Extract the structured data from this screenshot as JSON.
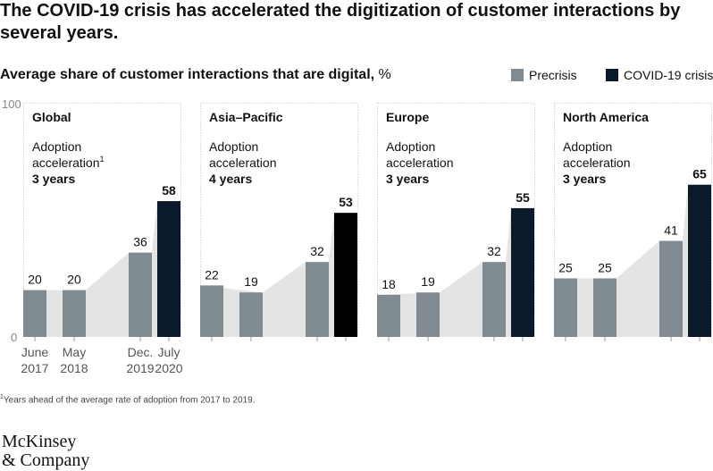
{
  "title": "The COVID-19 crisis has accelerated the digitization of customer interactions by several years.",
  "subtitle_bold": "Average share of customer interactions that are digital,",
  "subtitle_unit": " %",
  "legend": [
    {
      "label": "Precrisis",
      "color": "#7f8a91"
    },
    {
      "label": "COVID-19 crisis",
      "color": "#0b1a2b"
    }
  ],
  "colors": {
    "precrisis": "#7f8a91",
    "crisis_dark": "#0b1a2b",
    "crisis_black": "#000000",
    "area": "#e4e4e4",
    "border": "#d4d4d4"
  },
  "chart_data": {
    "type": "bar",
    "title": "Average share of customer interactions that are digital, %",
    "ylim": [
      0,
      100
    ],
    "yticks": [
      "100",
      "0"
    ],
    "categories": [
      "June 2017",
      "May 2018",
      "Dec. 2019",
      "July 2020"
    ],
    "category_labels": [
      {
        "line1": "June",
        "line2": "2017"
      },
      {
        "line1": "May",
        "line2": "2018"
      },
      {
        "line1": "Dec.",
        "line2": "2019"
      },
      {
        "line1": "July",
        "line2": "2020"
      }
    ],
    "panels": [
      {
        "region": "Global",
        "adoption_label": "Adoption",
        "acceleration_label": "acceleration",
        "footnote_mark": "1",
        "acceleration": "3 years",
        "values": [
          20,
          20,
          36,
          58
        ],
        "crisis_color": "#0b1a2b"
      },
      {
        "region": "Asia–Pacific",
        "adoption_label": "Adoption",
        "acceleration_label": "acceleration",
        "footnote_mark": "",
        "acceleration": "4 years",
        "values": [
          22,
          19,
          32,
          53
        ],
        "crisis_color": "#000000"
      },
      {
        "region": "Europe",
        "adoption_label": "Adoption",
        "acceleration_label": "acceleration",
        "footnote_mark": "",
        "acceleration": "3 years",
        "values": [
          18,
          19,
          32,
          55
        ],
        "crisis_color": "#0b1a2b"
      },
      {
        "region": "North America",
        "adoption_label": "Adoption",
        "acceleration_label": "acceleration",
        "footnote_mark": "",
        "acceleration": "3 years",
        "values": [
          25,
          25,
          41,
          65
        ],
        "crisis_color": "#0b1a2b"
      }
    ]
  },
  "footnote_mark": "1",
  "footnote": "Years ahead of the average rate of adoption from 2017 to 2019.",
  "logo_line1": "McKinsey",
  "logo_line2": "& Company"
}
